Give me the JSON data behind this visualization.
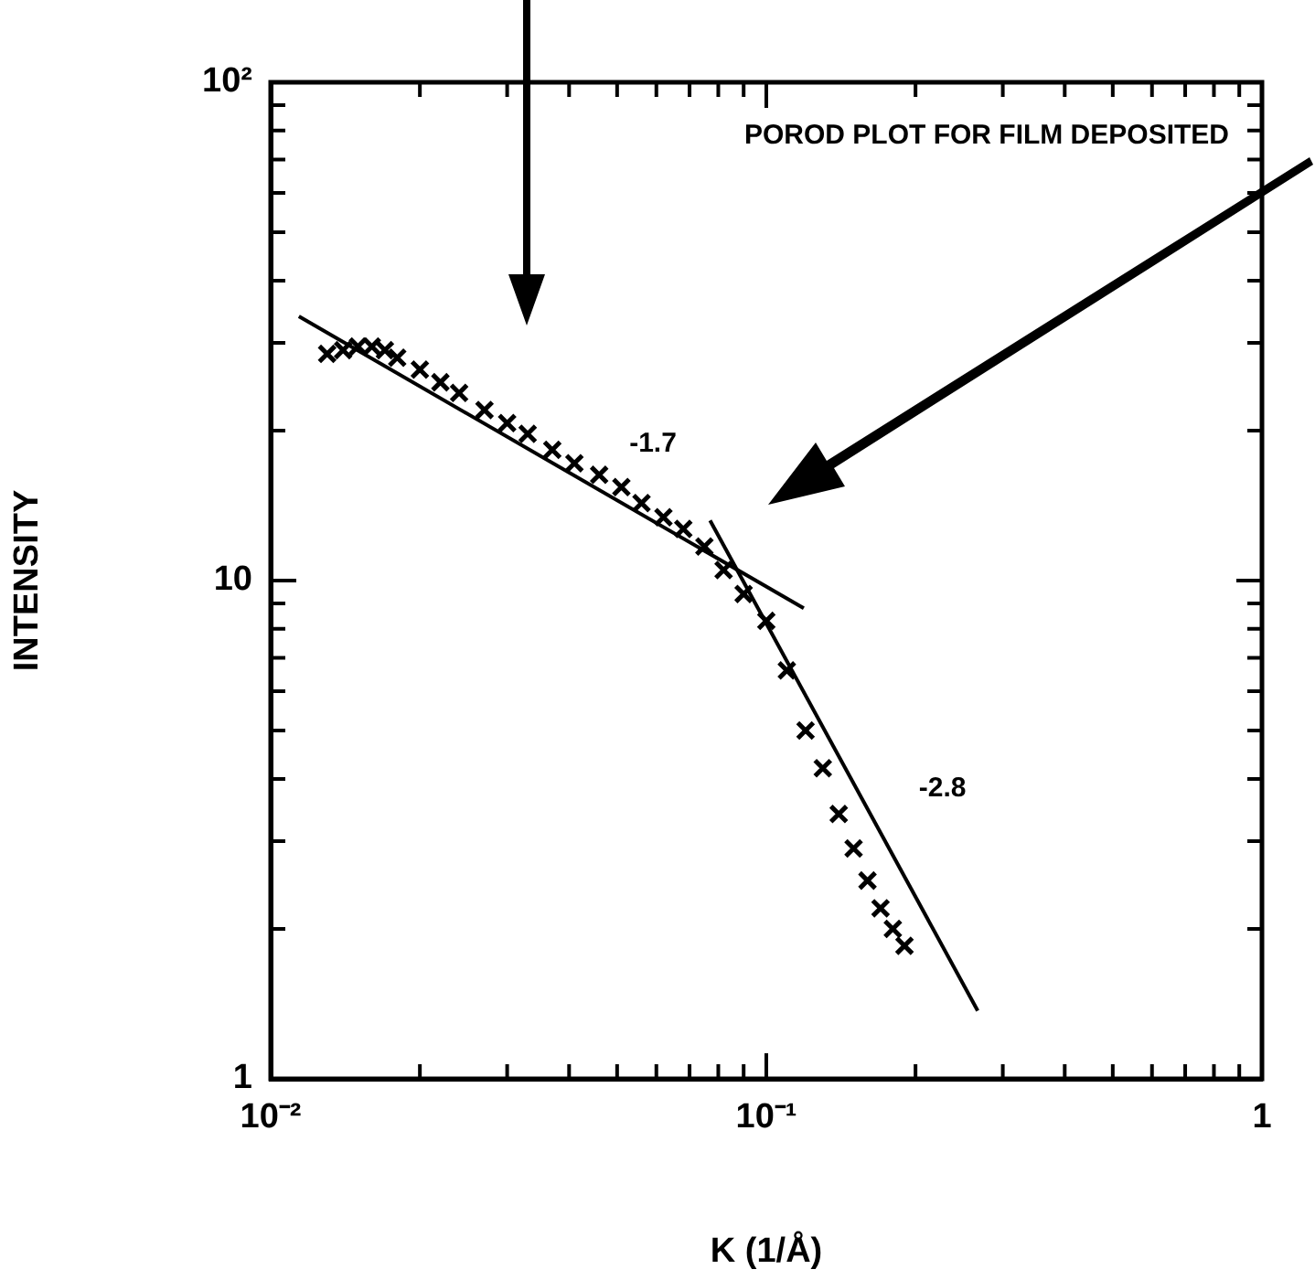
{
  "chart_data": {
    "type": "scatter",
    "xlabel": "K (1/Å)",
    "ylabel": "INTENSITY",
    "log": "xy",
    "legend": false,
    "grid": false,
    "xlim": [
      0.01,
      1
    ],
    "ylim": [
      1,
      100
    ],
    "xticks": [
      {
        "value": 0.01,
        "label": "10⁻²"
      },
      {
        "value": 0.02,
        "label": null
      },
      {
        "value": 0.03,
        "label": null
      },
      {
        "value": 0.04,
        "label": null
      },
      {
        "value": 0.05,
        "label": null
      },
      {
        "value": 0.06,
        "label": null
      },
      {
        "value": 0.07,
        "label": null
      },
      {
        "value": 0.08,
        "label": null
      },
      {
        "value": 0.09,
        "label": null
      },
      {
        "value": 0.1,
        "label": "10⁻¹"
      },
      {
        "value": 0.2,
        "label": null
      },
      {
        "value": 0.3,
        "label": null
      },
      {
        "value": 0.4,
        "label": null
      },
      {
        "value": 0.5,
        "label": null
      },
      {
        "value": 0.6,
        "label": null
      },
      {
        "value": 0.7,
        "label": null
      },
      {
        "value": 0.8,
        "label": null
      },
      {
        "value": 0.9,
        "label": null
      },
      1
    ],
    "yticks": [
      1,
      {
        "value": 2,
        "label": null
      },
      {
        "value": 3,
        "label": null
      },
      {
        "value": 4,
        "label": null
      },
      {
        "value": 5,
        "label": null
      },
      {
        "value": 6,
        "label": null
      },
      {
        "value": 7,
        "label": null
      },
      {
        "value": 8,
        "label": null
      },
      {
        "value": 9,
        "label": null
      },
      10,
      {
        "value": 20,
        "label": null
      },
      {
        "value": 30,
        "label": null
      },
      {
        "value": 40,
        "label": null
      },
      {
        "value": 50,
        "label": null
      },
      {
        "value": 60,
        "label": null
      },
      {
        "value": 70,
        "label": null
      },
      {
        "value": 80,
        "label": null
      },
      {
        "value": 90,
        "label": null
      },
      {
        "value": 100,
        "label": "10²"
      }
    ],
    "series": [
      {
        "marker": "cross",
        "color": "#000000",
        "x": [
          0.013,
          0.014,
          0.015,
          0.016,
          0.017,
          0.018,
          0.02,
          0.022,
          0.024,
          0.027,
          0.03,
          0.033,
          0.037,
          0.041,
          0.046,
          0.051,
          0.056,
          0.062,
          0.068,
          0.075,
          0.082,
          0.09,
          0.1,
          0.11,
          0.12,
          0.13,
          0.14,
          0.15,
          0.16,
          0.17,
          0.18,
          0.19
        ],
        "values": [
          28.5,
          29,
          29.5,
          29.5,
          29,
          28,
          26.5,
          25,
          23.8,
          22,
          20.7,
          19.7,
          18.3,
          17.2,
          16.3,
          15.4,
          14.3,
          13.4,
          12.7,
          11.7,
          10.5,
          9.4,
          8.3,
          6.6,
          5,
          4.2,
          3.4,
          2.9,
          2.5,
          2.2,
          2,
          1.85
        ]
      },
      {
        "type": "line",
        "marker": "none",
        "color": "#000000",
        "x": [
          0.0114,
          0.119
        ],
        "values": [
          33.9,
          8.8
        ]
      },
      {
        "type": "line",
        "marker": "none",
        "color": "#000000",
        "x": [
          0.077,
          0.267
        ],
        "values": [
          13.2,
          1.37
        ]
      }
    ],
    "annotations": [
      "POROD PLOT FOR FILM DEPOSITED",
      "-1.7",
      "-2.8"
    ]
  }
}
